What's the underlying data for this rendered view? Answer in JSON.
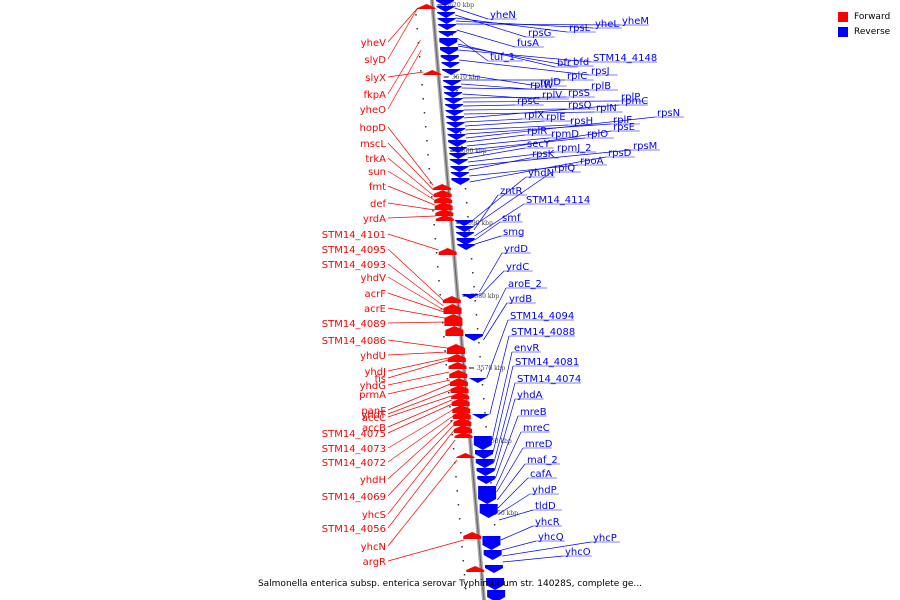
{
  "legend": {
    "forward_label": "Forward",
    "reverse_label": "Reverse",
    "forward_color": "#ff0000",
    "reverse_color": "#0000ff"
  },
  "caption": "Salmonella enterica subsp. enterica serovar Typhimurium str. 14028S, complete ge...",
  "ticks": [
    "3620 kbp",
    "3610 kbp",
    "3600 kbp",
    "3590 kbp",
    "3580 kbp",
    "3570 kbp",
    "3560 kbp",
    "3550 kbp"
  ],
  "forward_genes": [
    "yheV",
    "slyD",
    "slyX",
    "fkpA",
    "yheO",
    "hopD",
    "mscL",
    "trkA",
    "sun",
    "fmt",
    "def",
    "yrdA",
    "STM14_4101",
    "STM14_4095",
    "STM14_4093",
    "yhdV",
    "acrF",
    "acrE",
    "STM14_4089",
    "STM14_4086",
    "yhdU",
    "yhdJ",
    "fis",
    "yhdG",
    "prmA",
    "panF",
    "yhdT",
    "accC",
    "accB",
    "STM14_4075",
    "STM14_4073",
    "STM14_4072",
    "yhdH",
    "STM14_4069",
    "yhcS",
    "STM14_4056",
    "yhcN",
    "argR"
  ],
  "reverse_genes": [
    "yheN",
    "rpsG",
    "rpsL",
    "yheL",
    "yheM",
    "fusA",
    "tuf_1",
    "bfr",
    "bfd",
    "STM14_4148",
    "rpsJ",
    "rplD",
    "rplC",
    "rplW",
    "rplB",
    "rplV",
    "rpsS",
    "rplP",
    "rpsC",
    "rpsQ",
    "rplN",
    "rpmC",
    "rplX",
    "rplE",
    "rpsH",
    "rplF",
    "rpsN",
    "rplR",
    "rpmD",
    "rplO",
    "rpsE",
    "secY",
    "rpmJ_2",
    "rpsM",
    "rpsK",
    "rpoA",
    "rpsD",
    "yhdN",
    "rplQ",
    "zntR",
    "STM14_4114",
    "smf",
    "smg",
    "yrdD",
    "yrdC",
    "aroE_2",
    "yrdB",
    "STM14_4094",
    "STM14_4088",
    "envR",
    "STM14_4081",
    "STM14_4074",
    "yhdA",
    "mreB",
    "mreC",
    "mreD",
    "maf_2",
    "cafA",
    "yhdP",
    "tldD",
    "yhcR",
    "yhcQ",
    "yhcP",
    "yhcO"
  ]
}
